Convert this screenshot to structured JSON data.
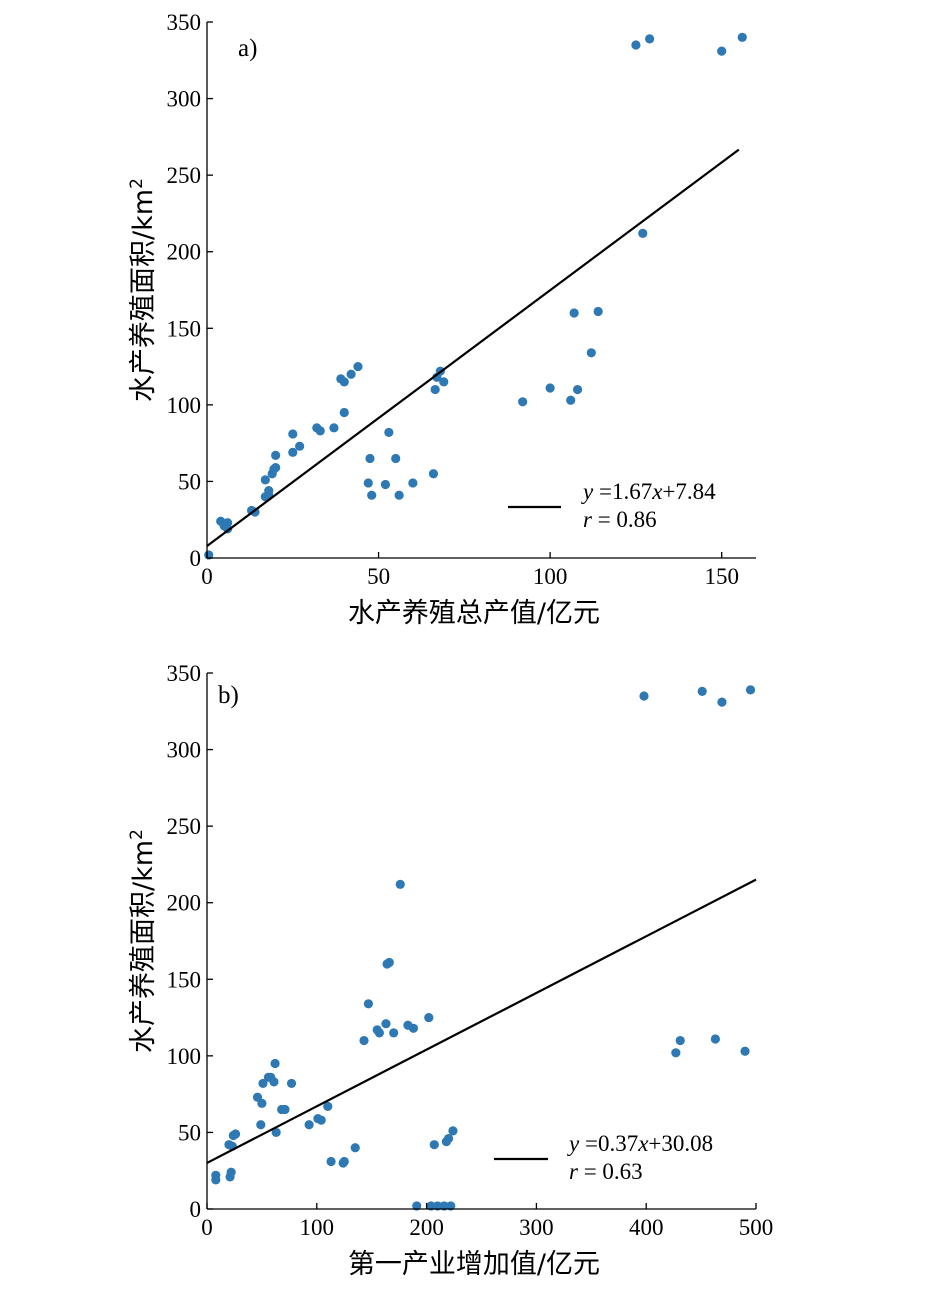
{
  "chart_data": [
    {
      "type": "scatter",
      "panel_label": "a)",
      "xlabel": "水产养殖总产值/亿元",
      "ylabel": "水产养殖面积/km",
      "ylabel_superscript": "2",
      "xlim": [
        0,
        160
      ],
      "ylim": [
        0,
        350
      ],
      "xticks": [
        "0",
        "50",
        "100",
        "150"
      ],
      "yticks": [
        "0",
        "50",
        "100",
        "150",
        "200",
        "250",
        "300",
        "350"
      ],
      "grid": false,
      "legend_placement": "bottom-right",
      "fit": {
        "slope": 1.67,
        "intercept": 7.84,
        "x_range": [
          0,
          155
        ]
      },
      "legend": {
        "eq_y": "y",
        "eq_mid": " =1.67",
        "eq_x": "x",
        "eq_tail": "+7.84",
        "r_sym": "r",
        "r_val": " = 0.86"
      },
      "series": [
        {
          "points": [
            [
              0.5,
              2
            ],
            [
              4,
              24
            ],
            [
              5,
              21
            ],
            [
              6,
              23
            ],
            [
              6,
              19
            ],
            [
              13,
              31
            ],
            [
              14,
              30
            ],
            [
              17,
              40
            ],
            [
              17,
              51
            ],
            [
              18,
              44
            ],
            [
              18,
              41
            ],
            [
              19,
              55
            ],
            [
              19.5,
              58
            ],
            [
              20,
              59
            ],
            [
              20,
              67
            ],
            [
              25,
              69
            ],
            [
              25,
              81
            ],
            [
              27,
              73
            ],
            [
              32,
              85
            ],
            [
              33,
              83
            ],
            [
              37,
              85
            ],
            [
              39,
              117
            ],
            [
              40,
              115
            ],
            [
              40,
              95
            ],
            [
              42,
              120
            ],
            [
              44,
              125
            ],
            [
              47,
              49
            ],
            [
              47.5,
              65
            ],
            [
              48,
              41
            ],
            [
              52,
              48
            ],
            [
              53,
              82
            ],
            [
              55,
              65
            ],
            [
              56,
              41
            ],
            [
              60,
              49
            ],
            [
              66,
              55
            ],
            [
              66.5,
              110
            ],
            [
              67,
              118
            ],
            [
              68,
              122
            ],
            [
              69,
              115
            ],
            [
              92,
              102
            ],
            [
              100,
              111
            ],
            [
              106,
              103
            ],
            [
              107,
              160
            ],
            [
              108,
              110
            ],
            [
              112,
              134
            ],
            [
              114,
              161
            ],
            [
              125,
              335
            ],
            [
              127,
              212
            ],
            [
              129,
              339
            ],
            [
              150,
              331
            ],
            [
              156,
              340
            ]
          ]
        }
      ]
    },
    {
      "type": "scatter",
      "panel_label": "b)",
      "xlabel": "第一产业增加值/亿元",
      "ylabel": "水产养殖面积/km",
      "ylabel_superscript": "2",
      "xlim": [
        0,
        500
      ],
      "ylim": [
        0,
        350
      ],
      "xticks": [
        "0",
        "100",
        "200",
        "300",
        "400",
        "500"
      ],
      "yticks": [
        "0",
        "50",
        "100",
        "150",
        "200",
        "250",
        "300",
        "350"
      ],
      "grid": false,
      "legend_placement": "bottom-right",
      "fit": {
        "slope": 0.37,
        "intercept": 30.08,
        "x_range": [
          0,
          500
        ]
      },
      "legend": {
        "eq_y": "y",
        "eq_mid": " =0.37",
        "eq_x": "x",
        "eq_tail": "+30.08",
        "r_sym": "r",
        "r_val": " = 0.63"
      },
      "series": [
        {
          "points": [
            [
              8,
              22
            ],
            [
              8,
              19
            ],
            [
              20,
              42
            ],
            [
              21,
              21
            ],
            [
              22,
              24
            ],
            [
              23,
              41
            ],
            [
              24,
              48
            ],
            [
              26,
              49
            ],
            [
              46,
              73
            ],
            [
              49,
              55
            ],
            [
              50,
              69
            ],
            [
              51,
              82
            ],
            [
              56,
              86
            ],
            [
              58,
              86
            ],
            [
              61,
              83
            ],
            [
              62,
              95
            ],
            [
              63,
              50
            ],
            [
              68,
              65
            ],
            [
              71,
              65
            ],
            [
              77,
              82
            ],
            [
              93,
              55
            ],
            [
              101,
              59
            ],
            [
              104,
              58
            ],
            [
              110,
              67
            ],
            [
              113,
              31
            ],
            [
              124,
              30
            ],
            [
              125,
              31
            ],
            [
              135,
              40
            ],
            [
              143,
              110
            ],
            [
              147,
              134
            ],
            [
              155,
              117
            ],
            [
              157,
              115
            ],
            [
              163,
              121
            ],
            [
              164,
              160
            ],
            [
              166,
              161
            ],
            [
              170,
              115
            ],
            [
              176,
              212
            ],
            [
              183,
              120
            ],
            [
              188,
              118
            ],
            [
              202,
              125
            ],
            [
              191,
              2
            ],
            [
              204,
              2
            ],
            [
              210,
              2
            ],
            [
              216,
              2
            ],
            [
              222,
              2
            ],
            [
              207,
              42
            ],
            [
              218,
              44
            ],
            [
              220,
              46
            ],
            [
              224,
              51
            ],
            [
              398,
              335
            ],
            [
              427,
              102
            ],
            [
              431,
              110
            ],
            [
              451,
              338
            ],
            [
              463,
              111
            ],
            [
              469,
              331
            ],
            [
              490,
              103
            ],
            [
              495,
              339
            ]
          ]
        }
      ]
    }
  ]
}
